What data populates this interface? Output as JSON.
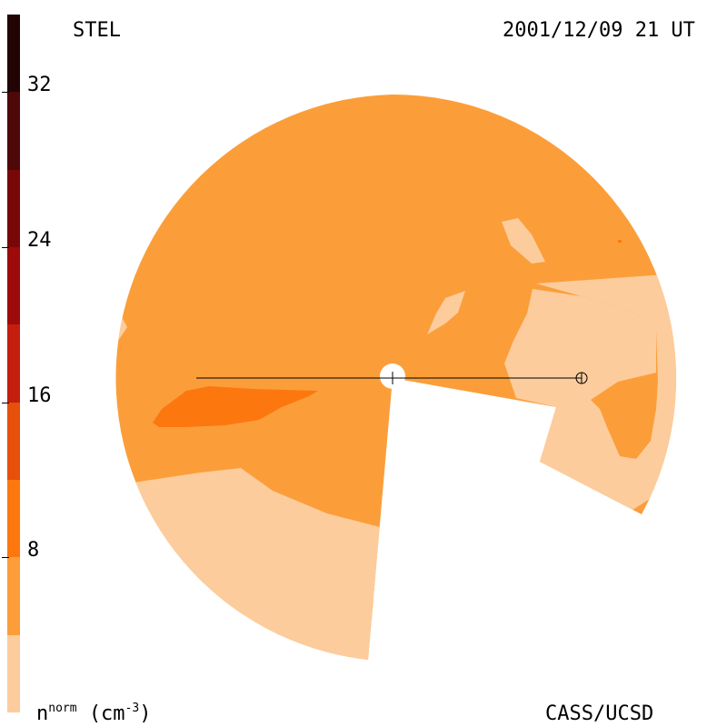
{
  "header": {
    "instrument": "STEL",
    "datetime": "2001/12/09 21 UT"
  },
  "footer": {
    "credit": "CASS/UCSD"
  },
  "colorbar": {
    "quantity": "n",
    "quantity_sup": "norm",
    "unit": "(cm",
    "unit_sup": "-3",
    "unit_close": ")",
    "tick_labels": [
      "32",
      "24",
      "16",
      "8"
    ],
    "tick_values": [
      32,
      24,
      16,
      8
    ],
    "range": [
      0,
      36
    ],
    "levels": [
      {
        "from": 0,
        "to": 4,
        "color": "#fdcc9c"
      },
      {
        "from": 4,
        "to": 8,
        "color": "#fb9e3a"
      },
      {
        "from": 8,
        "to": 12,
        "color": "#fc780e"
      },
      {
        "from": 12,
        "to": 16,
        "color": "#e6500a"
      },
      {
        "from": 16,
        "to": 20,
        "color": "#c41e0f"
      },
      {
        "from": 20,
        "to": 24,
        "color": "#9e0b0b"
      },
      {
        "from": 24,
        "to": 28,
        "color": "#780808"
      },
      {
        "from": 28,
        "to": 32,
        "color": "#4e0808"
      },
      {
        "from": 32,
        "to": 36,
        "color": "#220404"
      }
    ]
  },
  "colors": {
    "background": "#ffffff",
    "lightest": "#fdcc9c",
    "light": "#fb9e3a",
    "medium": "#fc780e"
  }
}
